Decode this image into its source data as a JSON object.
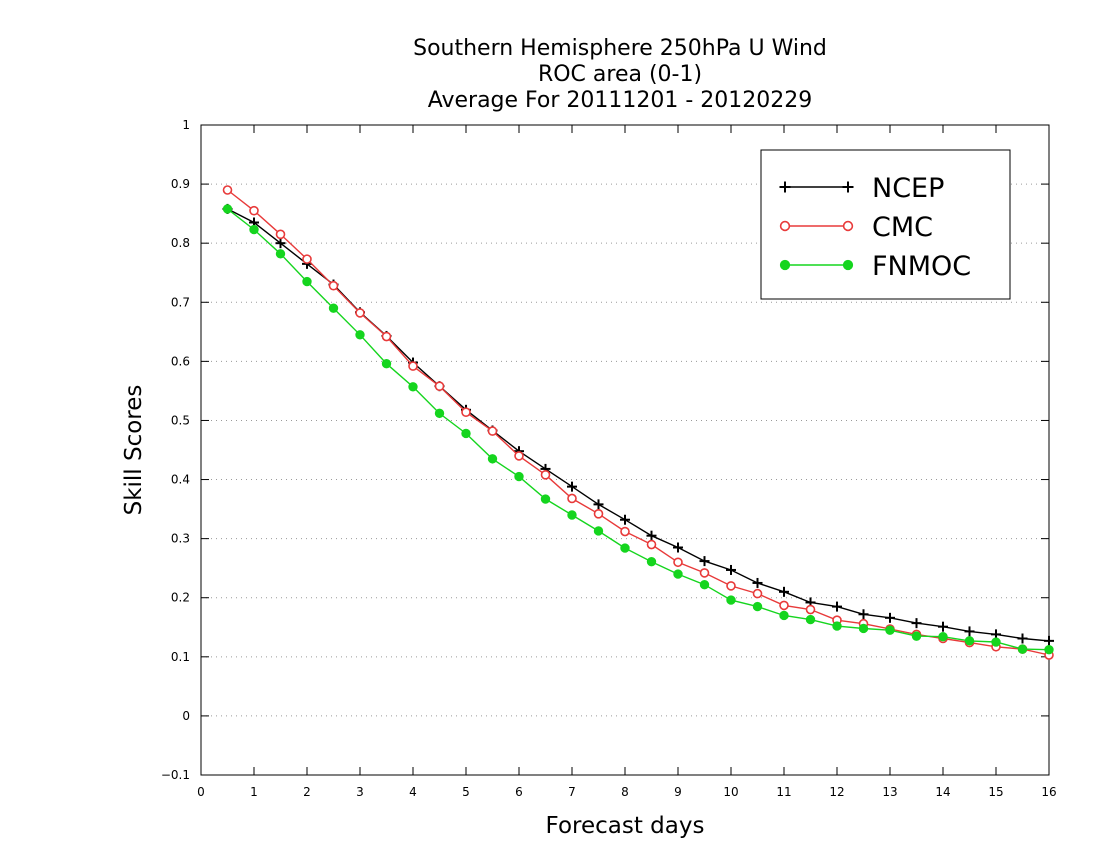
{
  "chart_data": {
    "type": "line",
    "title": [
      "Southern Hemisphere 250hPa U Wind",
      "ROC area (0-1)",
      "Average For 20111201 - 20120229"
    ],
    "xlabel": "Forecast days",
    "ylabel": "Skill Scores",
    "xlim": [
      0,
      16
    ],
    "ylim": [
      -0.1,
      1
    ],
    "xticks": [
      "0",
      "1",
      "2",
      "3",
      "4",
      "5",
      "6",
      "7",
      "8",
      "9",
      "10",
      "11",
      "12",
      "13",
      "14",
      "15",
      "16"
    ],
    "yticks": [
      "−0.1",
      "0",
      "0.1",
      "0.2",
      "0.3",
      "0.4",
      "0.5",
      "0.6",
      "0.7",
      "0.8",
      "0.9",
      "1"
    ],
    "grid": "horizontal dotted",
    "legend_position": "top-right",
    "x": [
      0.5,
      1,
      1.5,
      2,
      2.5,
      3,
      3.5,
      4,
      4.5,
      5,
      5.5,
      6,
      6.5,
      7,
      7.5,
      8,
      8.5,
      9,
      9.5,
      10,
      10.5,
      11,
      11.5,
      12,
      12.5,
      13,
      13.5,
      14,
      14.5,
      15,
      15.5,
      16
    ],
    "series": [
      {
        "name": "NCEP",
        "color": "#000000",
        "marker": "plus",
        "values": [
          0.858,
          0.835,
          0.8,
          0.765,
          0.73,
          0.683,
          0.643,
          0.598,
          0.558,
          0.518,
          0.483,
          0.448,
          0.418,
          0.388,
          0.358,
          0.332,
          0.305,
          0.285,
          0.262,
          0.247,
          0.225,
          0.21,
          0.192,
          0.185,
          0.172,
          0.166,
          0.157,
          0.151,
          0.143,
          0.138,
          0.131,
          0.127
        ]
      },
      {
        "name": "CMC",
        "color": "#e83a3a",
        "marker": "open-circle",
        "values": [
          0.89,
          0.855,
          0.815,
          0.773,
          0.728,
          0.682,
          0.642,
          0.592,
          0.558,
          0.514,
          0.482,
          0.44,
          0.408,
          0.368,
          0.342,
          0.312,
          0.29,
          0.26,
          0.242,
          0.22,
          0.207,
          0.187,
          0.18,
          0.162,
          0.156,
          0.147,
          0.138,
          0.131,
          0.124,
          0.117,
          0.113,
          0.103
        ]
      },
      {
        "name": "FNMOC",
        "color": "#15d51e",
        "marker": "filled-circle",
        "values": [
          0.858,
          0.823,
          0.782,
          0.735,
          0.69,
          0.645,
          0.596,
          0.557,
          0.512,
          0.478,
          0.435,
          0.405,
          0.367,
          0.34,
          0.313,
          0.284,
          0.261,
          0.24,
          0.222,
          0.196,
          0.185,
          0.17,
          0.163,
          0.152,
          0.148,
          0.145,
          0.135,
          0.134,
          0.127,
          0.125,
          0.113,
          0.112
        ]
      }
    ]
  }
}
